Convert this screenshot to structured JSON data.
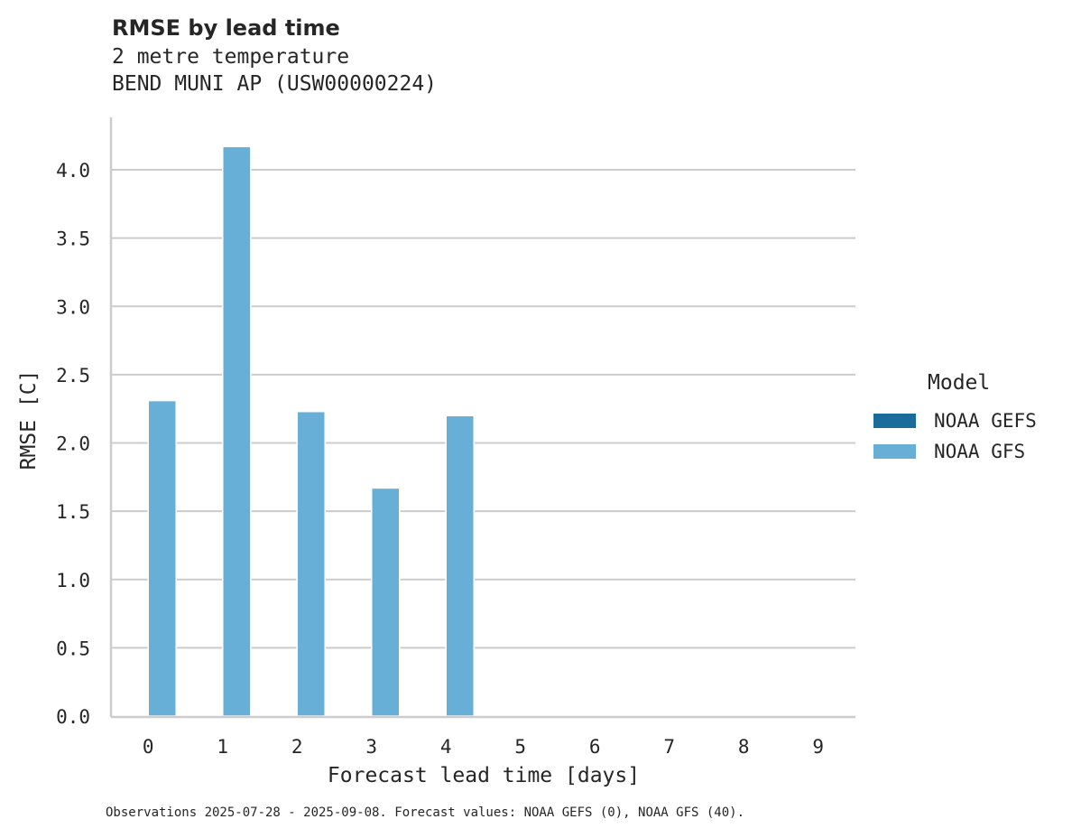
{
  "header": {
    "title": "RMSE by lead time",
    "subtitle_line1": "2 metre temperature",
    "subtitle_line2": "BEND MUNI AP (USW00000224)"
  },
  "axes": {
    "xlabel": "Forecast lead time [days]",
    "ylabel": "RMSE [C]"
  },
  "legend": {
    "title": "Model",
    "items": [
      {
        "label": "NOAA GEFS",
        "color": "#1a6d9a"
      },
      {
        "label": "NOAA GFS",
        "color": "#67afd7"
      }
    ]
  },
  "footnote": "Observations 2025-07-28 - 2025-09-08. Forecast values: NOAA GEFS (0), NOAA GFS (40).",
  "colors": {
    "grid": "#cccccc",
    "axis": "#cccccc",
    "text": "#262626"
  },
  "chart_data": {
    "type": "bar",
    "title": "RMSE by lead time",
    "subtitle": "2 metre temperature / BEND MUNI AP (USW00000224)",
    "xlabel": "Forecast lead time [days]",
    "ylabel": "RMSE [C]",
    "categories": [
      "0",
      "1",
      "2",
      "3",
      "4",
      "5",
      "6",
      "7",
      "8",
      "9"
    ],
    "series": [
      {
        "name": "NOAA GEFS",
        "color": "#1a6d9a",
        "values": [
          null,
          null,
          null,
          null,
          null,
          null,
          null,
          null,
          null,
          null
        ]
      },
      {
        "name": "NOAA GFS",
        "color": "#67afd7",
        "values": [
          2.31,
          4.17,
          2.23,
          1.67,
          2.2,
          null,
          null,
          null,
          null,
          null
        ]
      }
    ],
    "ylim": [
      0,
      4.38
    ],
    "yticks": [
      0.0,
      0.5,
      1.0,
      1.5,
      2.0,
      2.5,
      3.0,
      3.5,
      4.0
    ],
    "ytick_labels": [
      "0.0",
      "0.5",
      "1.0",
      "1.5",
      "2.0",
      "2.5",
      "3.0",
      "3.5",
      "4.0"
    ],
    "grid": "horizontal",
    "legend_position": "right"
  }
}
